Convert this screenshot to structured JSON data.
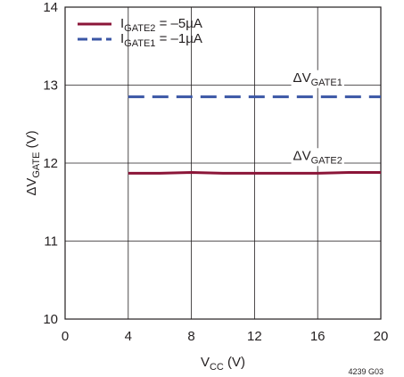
{
  "chart_data": {
    "type": "line",
    "xlabel": {
      "main": "V",
      "sub": "CC",
      "rest": " (V)"
    },
    "ylabel": {
      "main": "ΔV",
      "sub": "GATE",
      "rest": " (V)"
    },
    "xlim": [
      0,
      20
    ],
    "ylim": [
      10,
      14
    ],
    "x_ticks": [
      "0",
      "4",
      "8",
      "12",
      "16",
      "20"
    ],
    "y_ticks": [
      "10",
      "11",
      "12",
      "13",
      "14"
    ],
    "grid": true,
    "legend_position": "top-left",
    "series": [
      {
        "name_main": "I",
        "name_sub": "GATE2",
        "name_rest": " = –5µA",
        "style": "solid",
        "color": "#8b1538",
        "x": [
          4,
          6,
          8,
          10,
          12,
          14,
          16,
          18,
          20
        ],
        "y": [
          11.87,
          11.87,
          11.88,
          11.87,
          11.87,
          11.87,
          11.87,
          11.88,
          11.88
        ]
      },
      {
        "name_main": "I",
        "name_sub": "GATE1",
        "name_rest": " = –1µA",
        "style": "dashed",
        "color": "#3a56a5",
        "x": [
          4,
          8,
          12,
          16,
          20
        ],
        "y": [
          12.85,
          12.85,
          12.85,
          12.85,
          12.85
        ]
      }
    ],
    "annotations": [
      {
        "main": "ΔV",
        "sub": "GATE1",
        "x": 16,
        "y": 13.1
      },
      {
        "main": "ΔV",
        "sub": "GATE2",
        "x": 16,
        "y": 12.1
      }
    ],
    "figure_code": "4239 G03"
  }
}
